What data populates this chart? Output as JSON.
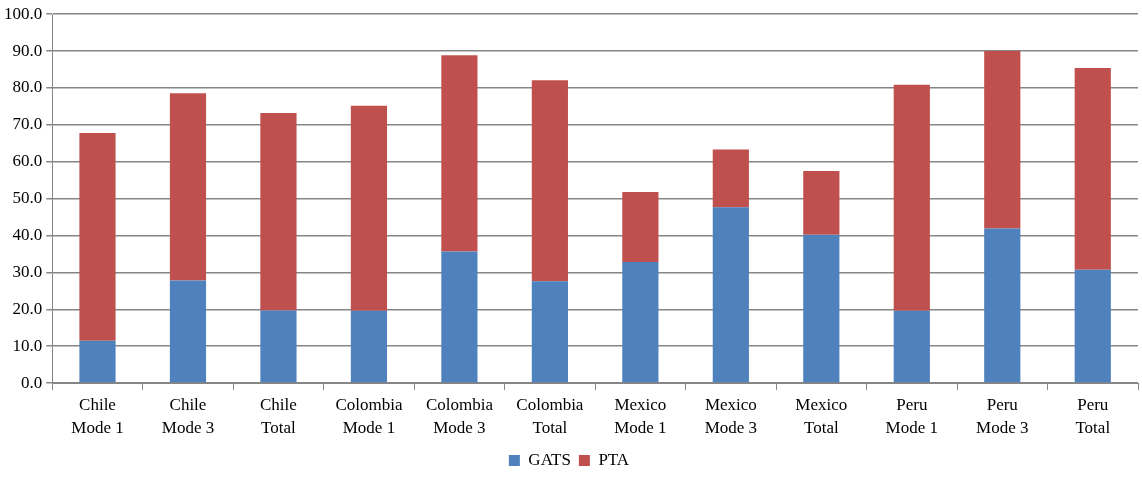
{
  "chart_data": {
    "type": "bar",
    "stacked": true,
    "categories": [
      "Chile Mode 1",
      "Chile Mode 3",
      "Chile Total",
      "Colombia Mode 1",
      "Colombia Mode 3",
      "Colombia Total",
      "Mexico Mode 1",
      "Mexico Mode 3",
      "Mexico Total",
      "Peru Mode 1",
      "Peru Mode 3",
      "Peru Total"
    ],
    "series": [
      {
        "name": "GATS",
        "color": "#4f81bd",
        "values": [
          11.5,
          27.8,
          19.7,
          19.6,
          35.7,
          27.6,
          32.8,
          47.7,
          40.2,
          19.6,
          41.9,
          30.7
        ]
      },
      {
        "name": "PTA",
        "color": "#c0504d",
        "values": [
          56.3,
          50.8,
          53.5,
          55.6,
          53.2,
          54.5,
          19.0,
          15.6,
          17.3,
          61.3,
          48.1,
          54.7
        ]
      }
    ],
    "ylim": [
      0,
      100
    ],
    "yticks": [
      {
        "value": 0,
        "label": "0.0"
      },
      {
        "value": 10,
        "label": "10.0"
      },
      {
        "value": 20,
        "label": "20.0"
      },
      {
        "value": 30,
        "label": "30.0"
      },
      {
        "value": 40,
        "label": "40.0"
      },
      {
        "value": 50,
        "label": "50.0"
      },
      {
        "value": 60,
        "label": "60.0"
      },
      {
        "value": 70,
        "label": "70.0"
      },
      {
        "value": 80,
        "label": "80.0"
      },
      {
        "value": 90,
        "label": "90.0"
      },
      {
        "value": 100,
        "label": "100.0"
      }
    ],
    "grid": "y",
    "legend": "bottom"
  }
}
